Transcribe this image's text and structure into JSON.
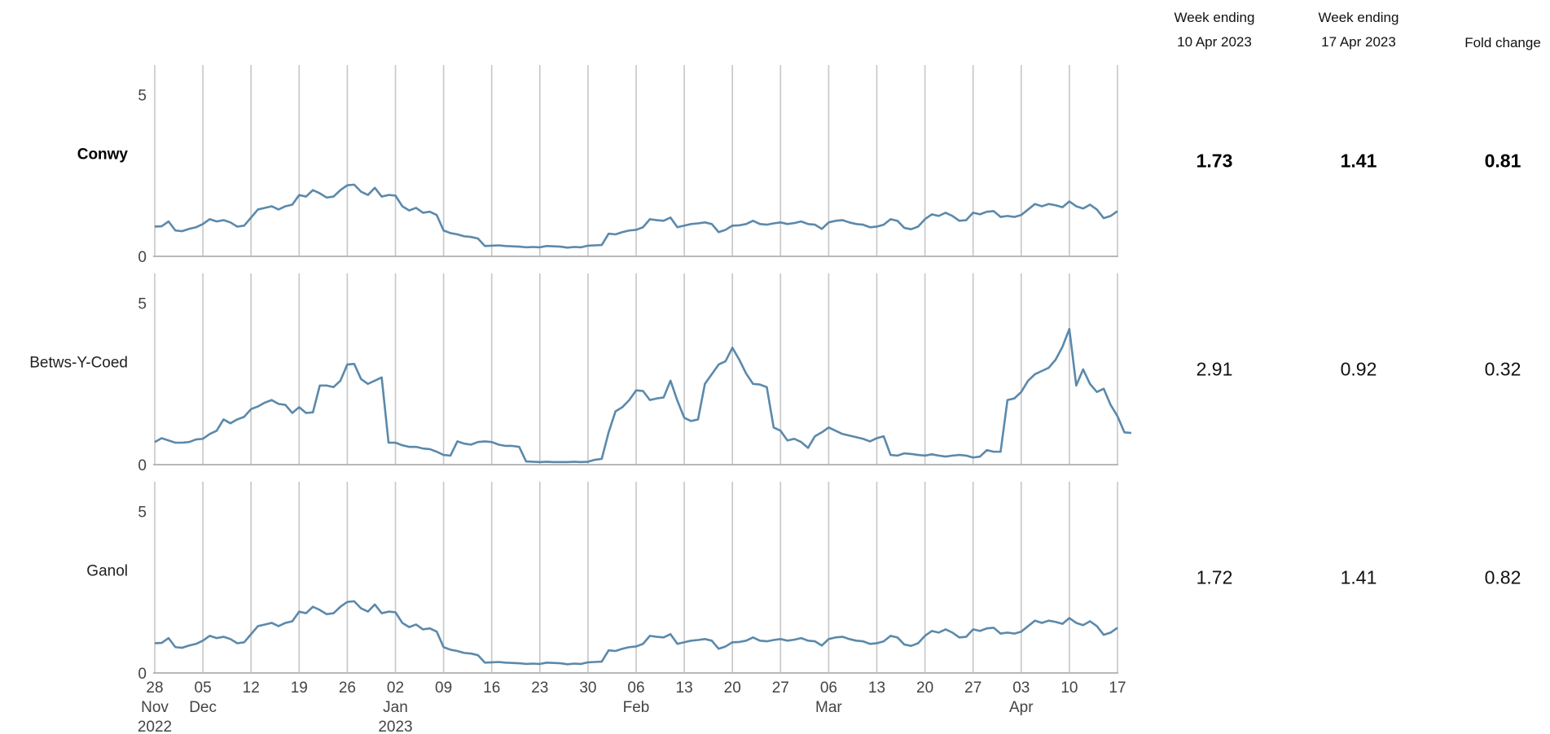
{
  "colors": {
    "line": "#5b89ab",
    "grid": "#c6c6c6",
    "axis": "#b8b8b8"
  },
  "table": {
    "headers": [
      [
        "Week ending",
        "10 Apr 2023"
      ],
      [
        "Week ending",
        "17 Apr 2023"
      ],
      [
        "Fold change"
      ]
    ],
    "rows": [
      {
        "name": "Conwy",
        "bold": true,
        "values": [
          "1.73",
          "1.41",
          "0.81"
        ]
      },
      {
        "name": "Betws-Y-Coed",
        "bold": false,
        "values": [
          "2.91",
          "0.92",
          "0.32"
        ]
      },
      {
        "name": "Ganol",
        "bold": false,
        "values": [
          "1.72",
          "1.41",
          "0.82"
        ]
      }
    ]
  },
  "chart_data": {
    "type": "line",
    "x_start": "2022-11-28",
    "x_end": "2023-04-17",
    "x_interval_days": 1,
    "ylim": [
      0,
      5
    ],
    "yticks": [
      "0",
      "5"
    ],
    "vertical_grid": true,
    "x_ticks": [
      {
        "date": "2022-11-28",
        "label": [
          "28",
          "Nov",
          "2022"
        ]
      },
      {
        "date": "2022-12-05",
        "label": [
          "05",
          "Dec"
        ]
      },
      {
        "date": "2022-12-12",
        "label": [
          "12"
        ]
      },
      {
        "date": "2022-12-19",
        "label": [
          "19"
        ]
      },
      {
        "date": "2022-12-26",
        "label": [
          "26"
        ]
      },
      {
        "date": "2023-01-02",
        "label": [
          "02",
          "Jan",
          "2023"
        ]
      },
      {
        "date": "2023-01-09",
        "label": [
          "09"
        ]
      },
      {
        "date": "2023-01-16",
        "label": [
          "16"
        ]
      },
      {
        "date": "2023-01-23",
        "label": [
          "23"
        ]
      },
      {
        "date": "2023-01-30",
        "label": [
          "30"
        ]
      },
      {
        "date": "2023-02-06",
        "label": [
          "06",
          "Feb"
        ]
      },
      {
        "date": "2023-02-13",
        "label": [
          "13"
        ]
      },
      {
        "date": "2023-02-20",
        "label": [
          "20"
        ]
      },
      {
        "date": "2023-02-27",
        "label": [
          "27"
        ]
      },
      {
        "date": "2023-03-06",
        "label": [
          "06",
          "Mar"
        ]
      },
      {
        "date": "2023-03-13",
        "label": [
          "13"
        ]
      },
      {
        "date": "2023-03-20",
        "label": [
          "20"
        ]
      },
      {
        "date": "2023-03-27",
        "label": [
          "27"
        ]
      },
      {
        "date": "2023-04-03",
        "label": [
          "03",
          "Apr"
        ]
      },
      {
        "date": "2023-04-10",
        "label": [
          "10"
        ]
      },
      {
        "date": "2023-04-17",
        "label": [
          "17"
        ]
      }
    ],
    "series": [
      {
        "name": "Conwy",
        "values": [
          0.92,
          0.93,
          1.08,
          0.8,
          0.78,
          0.85,
          0.9,
          1.0,
          1.15,
          1.08,
          1.12,
          1.05,
          0.92,
          0.95,
          1.2,
          1.45,
          1.5,
          1.55,
          1.45,
          1.55,
          1.6,
          1.9,
          1.85,
          2.05,
          1.95,
          1.82,
          1.85,
          2.05,
          2.2,
          2.22,
          2.0,
          1.9,
          2.12,
          1.85,
          1.9,
          1.88,
          1.55,
          1.42,
          1.5,
          1.35,
          1.38,
          1.28,
          0.8,
          0.72,
          0.68,
          0.62,
          0.6,
          0.55,
          0.32,
          0.33,
          0.34,
          0.32,
          0.31,
          0.3,
          0.28,
          0.29,
          0.28,
          0.32,
          0.31,
          0.3,
          0.27,
          0.29,
          0.28,
          0.33,
          0.34,
          0.35,
          0.7,
          0.68,
          0.75,
          0.8,
          0.82,
          0.9,
          1.15,
          1.12,
          1.1,
          1.2,
          0.9,
          0.95,
          1.0,
          1.02,
          1.05,
          1.0,
          0.75,
          0.82,
          0.95,
          0.96,
          1.0,
          1.1,
          1.0,
          0.98,
          1.02,
          1.05,
          1.0,
          1.03,
          1.08,
          1.0,
          0.98,
          0.85,
          1.05,
          1.1,
          1.12,
          1.05,
          1.0,
          0.98,
          0.9,
          0.92,
          0.98,
          1.15,
          1.1,
          0.88,
          0.84,
          0.92,
          1.15,
          1.3,
          1.25,
          1.35,
          1.25,
          1.1,
          1.12,
          1.35,
          1.3,
          1.38,
          1.4,
          1.22,
          1.25,
          1.22,
          1.28,
          1.45,
          1.62,
          1.55,
          1.62,
          1.58,
          1.52,
          1.7,
          1.55,
          1.48,
          1.6,
          1.45,
          1.18,
          1.25,
          1.4
        ]
      },
      {
        "name": "Betws-Y-Coed",
        "values": [
          0.7,
          0.82,
          0.75,
          0.68,
          0.68,
          0.7,
          0.78,
          0.8,
          0.95,
          1.05,
          1.4,
          1.28,
          1.4,
          1.48,
          1.72,
          1.8,
          1.92,
          2.0,
          1.88,
          1.85,
          1.6,
          1.78,
          1.6,
          1.62,
          2.45,
          2.45,
          2.4,
          2.6,
          3.1,
          3.12,
          2.65,
          2.5,
          2.6,
          2.7,
          0.68,
          0.68,
          0.6,
          0.55,
          0.55,
          0.5,
          0.48,
          0.4,
          0.3,
          0.28,
          0.72,
          0.65,
          0.62,
          0.7,
          0.72,
          0.7,
          0.62,
          0.58,
          0.58,
          0.55,
          0.1,
          0.09,
          0.08,
          0.09,
          0.08,
          0.08,
          0.08,
          0.09,
          0.08,
          0.09,
          0.15,
          0.18,
          1.0,
          1.65,
          1.78,
          2.0,
          2.3,
          2.28,
          2.0,
          2.05,
          2.08,
          2.6,
          1.98,
          1.45,
          1.35,
          1.4,
          2.5,
          2.8,
          3.1,
          3.2,
          3.62,
          3.25,
          2.82,
          2.5,
          2.48,
          2.4,
          1.15,
          1.05,
          0.75,
          0.8,
          0.7,
          0.52,
          0.88,
          1.0,
          1.15,
          1.05,
          0.95,
          0.9,
          0.85,
          0.8,
          0.72,
          0.82,
          0.88,
          0.3,
          0.28,
          0.35,
          0.33,
          0.3,
          0.28,
          0.32,
          0.28,
          0.25,
          0.28,
          0.3,
          0.28,
          0.22,
          0.25,
          0.45,
          0.4,
          0.4,
          2.0,
          2.05,
          2.25,
          2.6,
          2.8,
          2.9,
          3.0,
          3.25,
          3.65,
          4.2,
          2.45,
          2.95,
          2.5,
          2.25,
          2.35,
          1.85,
          1.5,
          1.0,
          0.98
        ]
      },
      {
        "name": "Ganol",
        "values": [
          0.92,
          0.93,
          1.08,
          0.8,
          0.78,
          0.85,
          0.9,
          1.0,
          1.15,
          1.08,
          1.12,
          1.05,
          0.92,
          0.95,
          1.2,
          1.45,
          1.5,
          1.55,
          1.45,
          1.55,
          1.6,
          1.9,
          1.85,
          2.05,
          1.95,
          1.82,
          1.85,
          2.05,
          2.2,
          2.22,
          2.0,
          1.9,
          2.12,
          1.85,
          1.9,
          1.88,
          1.55,
          1.42,
          1.5,
          1.35,
          1.38,
          1.28,
          0.8,
          0.72,
          0.68,
          0.62,
          0.6,
          0.55,
          0.32,
          0.33,
          0.34,
          0.32,
          0.31,
          0.3,
          0.28,
          0.29,
          0.28,
          0.32,
          0.31,
          0.3,
          0.27,
          0.29,
          0.28,
          0.33,
          0.34,
          0.35,
          0.7,
          0.68,
          0.75,
          0.8,
          0.82,
          0.9,
          1.15,
          1.12,
          1.1,
          1.2,
          0.9,
          0.95,
          1.0,
          1.02,
          1.05,
          1.0,
          0.75,
          0.82,
          0.95,
          0.96,
          1.0,
          1.1,
          1.0,
          0.98,
          1.02,
          1.05,
          1.0,
          1.03,
          1.08,
          1.0,
          0.98,
          0.85,
          1.05,
          1.1,
          1.12,
          1.05,
          1.0,
          0.98,
          0.9,
          0.92,
          0.98,
          1.15,
          1.1,
          0.88,
          0.84,
          0.92,
          1.15,
          1.3,
          1.25,
          1.35,
          1.25,
          1.1,
          1.12,
          1.35,
          1.3,
          1.38,
          1.4,
          1.22,
          1.25,
          1.22,
          1.28,
          1.45,
          1.62,
          1.55,
          1.62,
          1.58,
          1.52,
          1.7,
          1.55,
          1.48,
          1.6,
          1.45,
          1.18,
          1.25,
          1.4
        ]
      }
    ]
  }
}
